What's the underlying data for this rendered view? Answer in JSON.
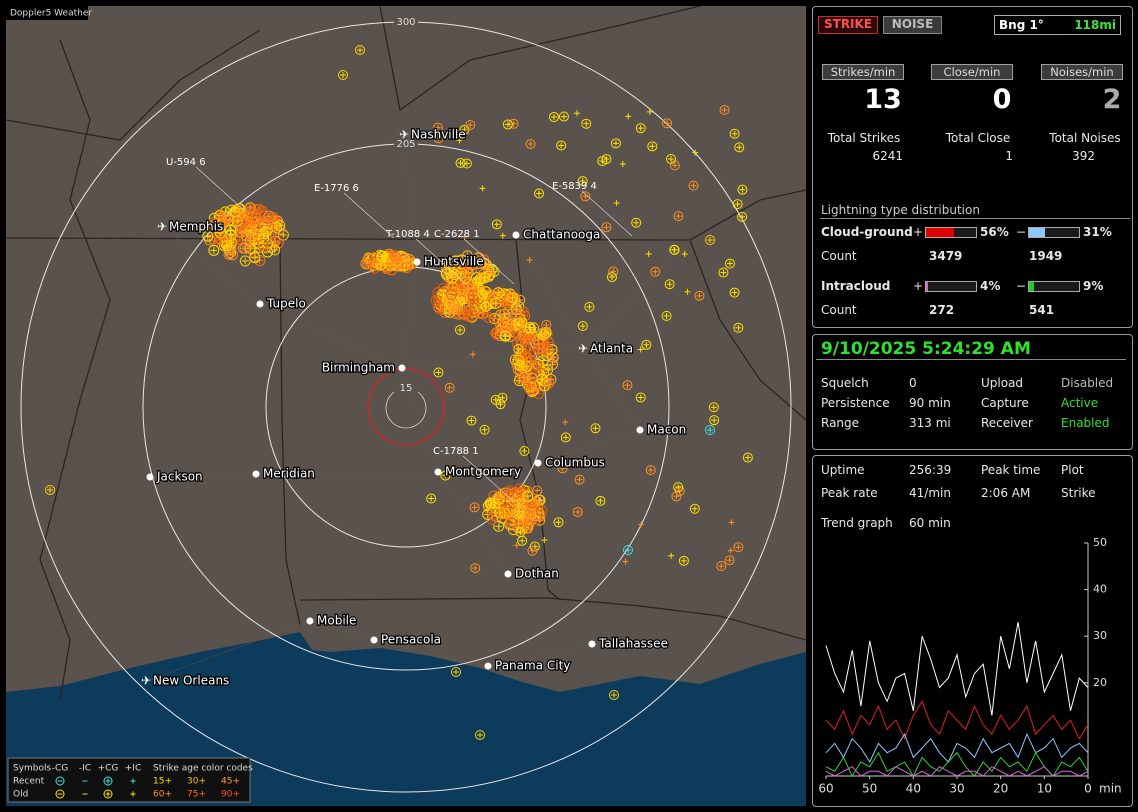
{
  "app": {
    "title": "Doppler5 Weather"
  },
  "map": {
    "ring_labels": [
      "300",
      "205",
      "15"
    ],
    "cities": [
      "Nashville",
      "Memphis",
      "Chattanooga",
      "Huntsville",
      "Tupelo",
      "Atlanta",
      "Birmingham",
      "Macon",
      "Jackson",
      "Meridian",
      "Montgomery",
      "Columbus",
      "Dothan",
      "Mobile",
      "Pensacola",
      "Tallahassee",
      "Panama City",
      "New Orleans"
    ],
    "strike_labels": [
      "U-594 6",
      "E-1776 6",
      "T-1088 4",
      "C-2628 1",
      "E-5839 4",
      "C-1788 1"
    ],
    "legend": {
      "symbols_title": "Symbols",
      "symbol_types": [
        "-CG",
        "-IC",
        "+CG",
        "+IC"
      ],
      "age_title": "Strike age color codes",
      "rows": [
        {
          "name": "Recent",
          "ages": [
            "15+",
            "30+",
            "45+"
          ]
        },
        {
          "name": "Old",
          "ages": [
            "60+",
            "75+",
            "90+"
          ]
        }
      ]
    }
  },
  "panel": {
    "mode_buttons": [
      "STRIKE",
      "NOISE"
    ],
    "bearing": "Bng 1°",
    "distance": "118mi",
    "rate_headers": [
      "Strikes/min",
      "Close/min",
      "Noises/min"
    ],
    "rates": [
      13,
      0,
      2
    ],
    "total_labels": [
      "Total Strikes",
      "Total Close",
      "Total Noises"
    ],
    "totals": [
      6241,
      1,
      392
    ],
    "distribution": {
      "title": "Lightning type distribution",
      "plus_sign": "+",
      "minus_sign": "−",
      "count_label": "Count",
      "rows": [
        {
          "name": "Cloud-ground",
          "plus": {
            "value": 56,
            "label": "56%"
          },
          "minus": {
            "value": 31,
            "label": "31%"
          },
          "counts": [
            3479,
            1949
          ]
        },
        {
          "name": "Intracloud",
          "plus": {
            "value": 4,
            "label": "4%"
          },
          "minus": {
            "value": 9,
            "label": "9%"
          },
          "counts": [
            272,
            541
          ]
        }
      ]
    },
    "status": {
      "datetime": "9/10/2025 5:24:29 AM",
      "settings": [
        [
          "Squelch",
          "0",
          "Upload",
          "Disabled"
        ],
        [
          "Persistence",
          "90 min",
          "Capture",
          "Active"
        ],
        [
          "Range",
          "313 mi",
          "Receiver",
          "Enabled"
        ]
      ]
    },
    "stats": {
      "rows": [
        [
          "Uptime",
          "256:39",
          "Peak time",
          "Plot"
        ],
        [
          "Peak rate",
          "41/min",
          "2:06 AM",
          "Strike"
        ]
      ],
      "trend_label": "Trend graph",
      "trend_window": "60 min"
    }
  },
  "trend_graph": {
    "xlim": [
      60,
      0
    ],
    "ylim": [
      0,
      50
    ],
    "xticks": [
      60,
      50,
      40,
      30,
      20,
      10,
      0
    ],
    "yticks": [
      20,
      30,
      40,
      50
    ],
    "x_unit": "min",
    "x": [
      60,
      58,
      56,
      54,
      52,
      50,
      48,
      46,
      44,
      42,
      40,
      38,
      36,
      34,
      32,
      30,
      28,
      26,
      24,
      22,
      20,
      18,
      16,
      14,
      12,
      10,
      8,
      6,
      4,
      2,
      0
    ],
    "series": [
      {
        "color": "#ffffff",
        "values": [
          28,
          22,
          18,
          27,
          15,
          29,
          20,
          16,
          21,
          22,
          14,
          30,
          25,
          19,
          21,
          26,
          17,
          22,
          24,
          13,
          30,
          23,
          33,
          20,
          29,
          18,
          22,
          26,
          14,
          21,
          19
        ]
      },
      {
        "color": "#e02020",
        "values": [
          12,
          10,
          14,
          9,
          13,
          11,
          15,
          10,
          12,
          8,
          13,
          16,
          11,
          9,
          14,
          12,
          10,
          15,
          11,
          9,
          13,
          10,
          12,
          15,
          9,
          11,
          13,
          10,
          12,
          8,
          11
        ]
      },
      {
        "color": "#8ec8ff",
        "values": [
          5,
          7,
          4,
          8,
          6,
          3,
          7,
          5,
          6,
          9,
          4,
          6,
          8,
          5,
          3,
          7,
          6,
          4,
          8,
          5,
          6,
          7,
          4,
          9,
          5,
          6,
          8,
          4,
          6,
          7,
          5
        ]
      },
      {
        "color": "#30d030",
        "values": [
          2,
          1,
          4,
          0,
          3,
          2,
          5,
          1,
          2,
          3,
          0,
          4,
          2,
          1,
          3,
          5,
          2,
          0,
          3,
          1,
          4,
          2,
          3,
          1,
          5,
          2,
          0,
          3,
          2,
          4,
          1
        ]
      },
      {
        "color": "#e060e0",
        "values": [
          1,
          0,
          1,
          2,
          0,
          1,
          1,
          0,
          2,
          1,
          0,
          1,
          0,
          2,
          1,
          0,
          1,
          1,
          0,
          2,
          1,
          0,
          1,
          0,
          1,
          2,
          0,
          1,
          1,
          0,
          1
        ]
      }
    ]
  }
}
